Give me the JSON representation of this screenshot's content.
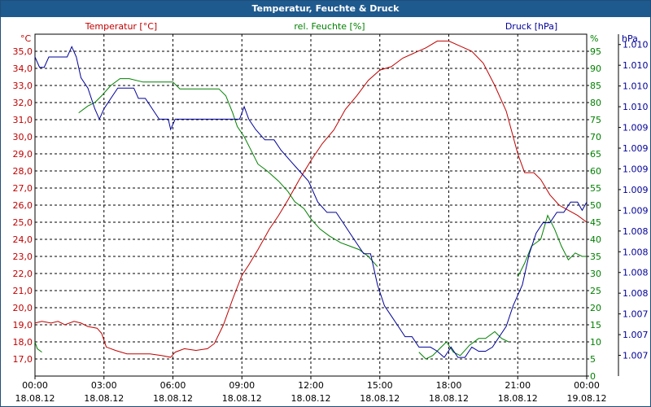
{
  "window": {
    "title": "Temperatur, Feuchte & Druck"
  },
  "colors": {
    "temperature": "#c00000",
    "humidity": "#008000",
    "pressure": "#000099",
    "grid": "#000000",
    "titlebar": "#1f5a8e"
  },
  "chart_data": {
    "type": "line",
    "title": "Temperatur, Feuchte & Druck",
    "grid": true,
    "x_labels": [
      {
        "time": "00:00",
        "date": "18.08.12"
      },
      {
        "time": "03:00",
        "date": "18.08.12"
      },
      {
        "time": "06:00",
        "date": "18.08.12"
      },
      {
        "time": "09:00",
        "date": "18.08.12"
      },
      {
        "time": "12:00",
        "date": "18.08.12"
      },
      {
        "time": "15:00",
        "date": "18.08.12"
      },
      {
        "time": "18:00",
        "date": "18.08.12"
      },
      {
        "time": "21:00",
        "date": "18.08.12"
      },
      {
        "time": "00:00",
        "date": "19.08.12"
      }
    ],
    "xlim_hours": [
      0,
      24
    ],
    "axes": {
      "temperature": {
        "title": "Temperatur [°C]",
        "unit": "°C",
        "ylim": [
          16.0,
          36.0
        ],
        "tick_values": [
          17,
          18,
          19,
          20,
          21,
          22,
          23,
          24,
          25,
          26,
          27,
          28,
          29,
          30,
          31,
          32,
          33,
          34,
          35
        ],
        "tick_labels": [
          "17,0",
          "18,0",
          "19,0",
          "20,0",
          "21,0",
          "22,0",
          "23,0",
          "24,0",
          "25,0",
          "26,0",
          "27,0",
          "28,0",
          "29,0",
          "30,0",
          "31,0",
          "32,0",
          "33,0",
          "34,0",
          "35,0"
        ]
      },
      "humidity": {
        "title": "rel. Feuchte [%]",
        "unit": "%",
        "ylim": [
          0,
          100
        ],
        "tick_values": [
          0,
          5,
          10,
          15,
          20,
          25,
          30,
          35,
          40,
          45,
          50,
          55,
          60,
          65,
          70,
          75,
          80,
          85,
          90,
          95
        ],
        "tick_labels": [
          "0",
          "5",
          "10",
          "15",
          "20",
          "25",
          "30",
          "35",
          "40",
          "45",
          "50",
          "55",
          "60",
          "65",
          "70",
          "75",
          "80",
          "85",
          "90",
          "95"
        ]
      },
      "pressure": {
        "title": "Druck [hPa]",
        "unit": "hPa",
        "ylim": [
          0,
          16.5
        ],
        "tick_values": [
          1,
          2,
          3,
          4,
          5,
          6,
          7,
          8,
          9,
          10,
          11,
          12,
          13,
          14,
          15,
          16
        ],
        "tick_labels": [
          "1.007",
          "1.007",
          "1.007",
          "1.008",
          "1.008",
          "1.008",
          "1.008",
          "1.009",
          "1.009",
          "1.009",
          "1.009",
          "1.009",
          "1.010",
          "1.010",
          "1.010",
          "1.010"
        ]
      }
    },
    "series": [
      {
        "name": "Temperatur [°C]",
        "axis": "temperature",
        "color": "#c00000",
        "points": [
          [
            0,
            19.1
          ],
          [
            0.3,
            19.2
          ],
          [
            0.7,
            19.1
          ],
          [
            1.0,
            19.2
          ],
          [
            1.3,
            19.0
          ],
          [
            1.7,
            19.2
          ],
          [
            2.0,
            19.1
          ],
          [
            2.3,
            18.9
          ],
          [
            2.7,
            18.8
          ],
          [
            2.9,
            18.5
          ],
          [
            3.1,
            17.7
          ],
          [
            3.5,
            17.5
          ],
          [
            4.0,
            17.3
          ],
          [
            5.0,
            17.3
          ],
          [
            5.5,
            17.2
          ],
          [
            5.9,
            17.1
          ],
          [
            6.1,
            17.4
          ],
          [
            6.5,
            17.6
          ],
          [
            7.0,
            17.5
          ],
          [
            7.5,
            17.6
          ],
          [
            7.8,
            17.9
          ],
          [
            8.2,
            19.0
          ],
          [
            8.6,
            20.5
          ],
          [
            9.0,
            21.9
          ],
          [
            9.3,
            22.5
          ],
          [
            9.7,
            23.4
          ],
          [
            10.2,
            24.6
          ],
          [
            10.6,
            25.4
          ],
          [
            11.0,
            26.3
          ],
          [
            11.5,
            27.5
          ],
          [
            12.0,
            28.6
          ],
          [
            12.5,
            29.6
          ],
          [
            13.0,
            30.4
          ],
          [
            13.5,
            31.6
          ],
          [
            14.0,
            32.4
          ],
          [
            14.5,
            33.3
          ],
          [
            15.0,
            33.9
          ],
          [
            15.5,
            34.1
          ],
          [
            16.0,
            34.6
          ],
          [
            16.5,
            34.9
          ],
          [
            17.0,
            35.2
          ],
          [
            17.5,
            35.6
          ],
          [
            18.0,
            35.6
          ],
          [
            18.5,
            35.3
          ],
          [
            19.0,
            35.0
          ],
          [
            19.5,
            34.3
          ],
          [
            20.0,
            33.0
          ],
          [
            20.5,
            31.5
          ],
          [
            21.0,
            29.0
          ],
          [
            21.3,
            27.9
          ],
          [
            21.7,
            27.9
          ],
          [
            22.0,
            27.5
          ],
          [
            22.4,
            26.6
          ],
          [
            22.8,
            26.0
          ],
          [
            23.2,
            25.7
          ],
          [
            23.6,
            25.4
          ],
          [
            24.0,
            25.0
          ]
        ]
      },
      {
        "name": "rel. Feuchte [%]",
        "axis": "humidity",
        "color": "#008000",
        "segments": [
          [
            [
              0,
              10
            ],
            [
              0.1,
              8
            ],
            [
              0.3,
              7
            ]
          ],
          [
            [
              1.9,
              77
            ],
            [
              2.3,
              79
            ],
            [
              2.6,
              80
            ],
            [
              2.9,
              82
            ],
            [
              3.3,
              85
            ],
            [
              3.7,
              87
            ],
            [
              4.1,
              87
            ],
            [
              4.7,
              86
            ],
            [
              5.3,
              86
            ],
            [
              6.0,
              86
            ],
            [
              6.3,
              84
            ],
            [
              6.6,
              84
            ],
            [
              7.0,
              84
            ],
            [
              7.6,
              84
            ],
            [
              8.0,
              84
            ],
            [
              8.3,
              82
            ],
            [
              8.6,
              77
            ],
            [
              8.8,
              73
            ],
            [
              9.1,
              70
            ],
            [
              9.4,
              66
            ],
            [
              9.7,
              62
            ],
            [
              10.1,
              60
            ],
            [
              10.6,
              57
            ],
            [
              11.0,
              54
            ],
            [
              11.3,
              51
            ],
            [
              11.7,
              49
            ],
            [
              12.0,
              46
            ],
            [
              12.4,
              43
            ],
            [
              12.8,
              41
            ],
            [
              13.3,
              39
            ],
            [
              13.7,
              38
            ],
            [
              14.1,
              37
            ],
            [
              14.5,
              35
            ],
            [
              14.9,
              32
            ]
          ],
          [
            [
              16.7,
              7
            ],
            [
              17.0,
              5
            ],
            [
              17.3,
              6
            ],
            [
              17.6,
              8
            ],
            [
              17.9,
              10
            ],
            [
              18.2,
              7
            ],
            [
              18.5,
              6
            ],
            [
              18.9,
              9
            ],
            [
              19.3,
              11
            ],
            [
              19.6,
              11
            ],
            [
              20.0,
              13
            ],
            [
              20.3,
              11
            ],
            [
              20.6,
              10
            ]
          ],
          [
            [
              21.0,
              29
            ],
            [
              21.3,
              33
            ],
            [
              21.6,
              38
            ],
            [
              22.0,
              40
            ],
            [
              22.3,
              47
            ],
            [
              22.6,
              43
            ],
            [
              22.9,
              38
            ],
            [
              23.2,
              34
            ],
            [
              23.5,
              36
            ],
            [
              23.8,
              35
            ],
            [
              24.0,
              35
            ]
          ]
        ]
      },
      {
        "name": "Druck [hPa]",
        "axis": "pressure",
        "color": "#000099",
        "points": [
          [
            0,
            15.4
          ],
          [
            0.2,
            14.9
          ],
          [
            0.4,
            14.9
          ],
          [
            0.6,
            15.4
          ],
          [
            1.0,
            15.4
          ],
          [
            1.4,
            15.4
          ],
          [
            1.6,
            15.9
          ],
          [
            1.8,
            15.4
          ],
          [
            2.0,
            14.4
          ],
          [
            2.3,
            13.9
          ],
          [
            2.6,
            12.9
          ],
          [
            2.8,
            12.4
          ],
          [
            3.0,
            12.9
          ],
          [
            3.3,
            13.4
          ],
          [
            3.6,
            13.9
          ],
          [
            4.0,
            13.9
          ],
          [
            4.3,
            13.9
          ],
          [
            4.5,
            13.4
          ],
          [
            4.8,
            13.4
          ],
          [
            5.1,
            12.9
          ],
          [
            5.4,
            12.4
          ],
          [
            5.8,
            12.4
          ],
          [
            5.9,
            11.9
          ],
          [
            6.1,
            12.4
          ],
          [
            6.5,
            12.4
          ],
          [
            7.0,
            12.4
          ],
          [
            7.5,
            12.4
          ],
          [
            8.0,
            12.4
          ],
          [
            8.5,
            12.4
          ],
          [
            8.9,
            12.4
          ],
          [
            9.1,
            13.0
          ],
          [
            9.3,
            12.4
          ],
          [
            9.6,
            11.9
          ],
          [
            10.0,
            11.4
          ],
          [
            10.4,
            11.4
          ],
          [
            10.7,
            10.9
          ],
          [
            11.1,
            10.4
          ],
          [
            11.5,
            9.9
          ],
          [
            11.9,
            9.4
          ],
          [
            12.3,
            8.4
          ],
          [
            12.7,
            7.9
          ],
          [
            13.1,
            7.9
          ],
          [
            13.4,
            7.4
          ],
          [
            13.7,
            6.9
          ],
          [
            14.0,
            6.4
          ],
          [
            14.3,
            5.9
          ],
          [
            14.6,
            5.9
          ],
          [
            14.9,
            4.4
          ],
          [
            15.2,
            3.4
          ],
          [
            15.5,
            2.9
          ],
          [
            15.8,
            2.4
          ],
          [
            16.1,
            1.9
          ],
          [
            16.4,
            1.9
          ],
          [
            16.7,
            1.4
          ],
          [
            17.2,
            1.4
          ],
          [
            17.5,
            1.2
          ],
          [
            17.8,
            0.9
          ],
          [
            18.1,
            1.4
          ],
          [
            18.4,
            0.9
          ],
          [
            18.7,
            0.9
          ],
          [
            19.0,
            1.4
          ],
          [
            19.3,
            1.2
          ],
          [
            19.6,
            1.2
          ],
          [
            19.9,
            1.4
          ],
          [
            20.2,
            1.9
          ],
          [
            20.5,
            2.4
          ],
          [
            20.8,
            3.4
          ],
          [
            21.2,
            4.4
          ],
          [
            21.5,
            5.9
          ],
          [
            21.8,
            6.9
          ],
          [
            22.1,
            7.4
          ],
          [
            22.4,
            7.4
          ],
          [
            22.7,
            7.9
          ],
          [
            23.0,
            7.9
          ],
          [
            23.3,
            8.4
          ],
          [
            23.6,
            8.4
          ],
          [
            23.8,
            8.0
          ],
          [
            24.0,
            8.4
          ]
        ]
      }
    ]
  }
}
